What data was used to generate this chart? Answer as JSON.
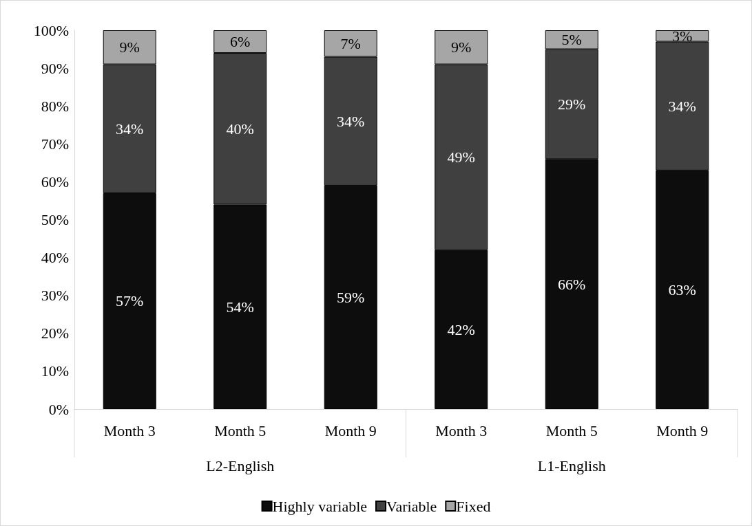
{
  "chart_data": {
    "type": "bar",
    "stacked": true,
    "categories": [
      "Month 3",
      "Month 5",
      "Month 9",
      "Month 3",
      "Month 5",
      "Month 9"
    ],
    "series": [
      {
        "name": "Highly variable",
        "color": "#0d0d0d",
        "values": [
          57,
          54,
          59,
          42,
          66,
          63
        ],
        "value_labels": [
          "57%",
          "54%",
          "59%",
          "42%",
          "66%",
          "63%"
        ]
      },
      {
        "name": "Variable",
        "color": "#404040",
        "values": [
          34,
          40,
          34,
          49,
          29,
          34
        ],
        "value_labels": [
          "34%",
          "40%",
          "34%",
          "49%",
          "29%",
          "34%"
        ]
      },
      {
        "name": "Fixed",
        "color": "#a6a6a6",
        "values": [
          9,
          6,
          7,
          9,
          5,
          3
        ],
        "value_labels": [
          "9%",
          "6%",
          "7%",
          "9%",
          "5%",
          "3%"
        ]
      }
    ],
    "ylim": [
      0,
      100
    ],
    "yticks": [
      {
        "value": 0,
        "label": "0%"
      },
      {
        "value": 10,
        "label": "10%"
      },
      {
        "value": 20,
        "label": "20%"
      },
      {
        "value": 30,
        "label": "30%"
      },
      {
        "value": 40,
        "label": "40%"
      },
      {
        "value": 50,
        "label": "50%"
      },
      {
        "value": 60,
        "label": "60%"
      },
      {
        "value": 70,
        "label": "70%"
      },
      {
        "value": 80,
        "label": "80%"
      },
      {
        "value": 90,
        "label": "90%"
      },
      {
        "value": 100,
        "label": "100%"
      }
    ],
    "annotations": [
      "L2-English",
      "L1-English"
    ],
    "grid": false,
    "legend": "bottom"
  }
}
